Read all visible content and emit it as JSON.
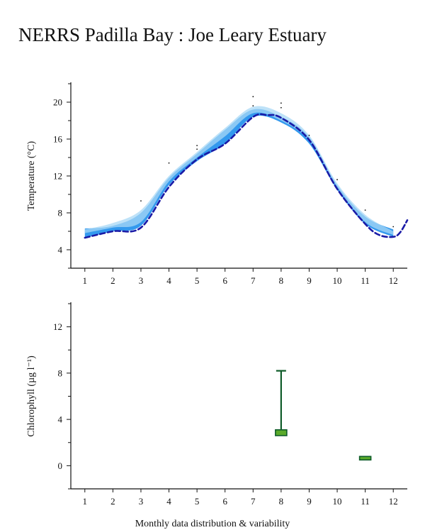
{
  "page": {
    "title": "NERRS Padilla Bay : Joe Leary Estuary",
    "footer": "Monthly data distribution & variability"
  },
  "chart_data": [
    {
      "type": "area",
      "ylabel": "Temperature (°C)",
      "xlim": [
        0.5,
        12.5
      ],
      "ylim": [
        2,
        22
      ],
      "x_ticks": [
        1,
        2,
        3,
        4,
        5,
        6,
        7,
        8,
        9,
        10,
        11,
        12
      ],
      "y_ticks": [
        4,
        8,
        12,
        16,
        20
      ],
      "colors": {
        "band": "#3399ee",
        "band_light": "#a8d8f6",
        "line": "#1a1aa6"
      },
      "band": {
        "x": [
          1,
          2,
          3,
          4,
          5,
          6,
          7,
          8,
          9,
          10,
          11,
          12
        ],
        "lower": [
          5.3,
          6.0,
          6.6,
          11.0,
          13.6,
          15.5,
          18.4,
          17.8,
          15.5,
          10.5,
          6.8,
          5.4
        ],
        "upper": [
          6.3,
          6.6,
          8.0,
          11.8,
          14.4,
          17.0,
          19.2,
          18.4,
          16.2,
          11.0,
          7.6,
          6.2
        ]
      },
      "light_band": {
        "x": [
          1,
          2,
          3,
          4,
          5,
          6,
          7,
          8,
          9,
          10,
          11,
          12
        ],
        "lower": [
          5.8,
          6.4,
          7.0,
          11.4,
          14.0,
          16.3,
          18.8,
          18.0,
          15.8,
          10.8,
          7.0,
          5.6
        ],
        "upper": [
          6.2,
          6.9,
          8.3,
          12.0,
          14.6,
          17.2,
          19.5,
          18.8,
          16.4,
          11.2,
          7.8,
          6.0
        ]
      },
      "median_line": {
        "x": [
          1,
          2,
          3,
          4,
          5,
          6,
          7,
          7.5,
          8,
          9,
          10,
          11,
          11.5,
          12,
          12.25,
          12.5
        ],
        "y": [
          5.3,
          6.0,
          6.4,
          10.8,
          13.8,
          15.5,
          18.4,
          18.6,
          18.3,
          15.9,
          10.6,
          6.8,
          5.6,
          5.4,
          5.9,
          7.2
        ]
      },
      "outliers": {
        "x": [
          3,
          4,
          5,
          5,
          7,
          7,
          8,
          8,
          9,
          10,
          11,
          12
        ],
        "y": [
          9.3,
          13.4,
          15.3,
          14.9,
          20.6,
          19.6,
          19.9,
          19.4,
          16.4,
          11.6,
          8.3,
          6.5
        ]
      }
    },
    {
      "type": "box",
      "ylabel": "Chlorophyll (µg l⁻¹)",
      "xlim": [
        0.5,
        12.5
      ],
      "ylim": [
        -2,
        14
      ],
      "x_ticks": [
        1,
        2,
        3,
        4,
        5,
        6,
        7,
        8,
        9,
        10,
        11,
        12
      ],
      "y_ticks": [
        0,
        4,
        8,
        12
      ],
      "colors": {
        "fill": "#5aaa2a",
        "stroke": "#0f5c2a"
      },
      "boxes": [
        {
          "x": 8,
          "q1": 2.6,
          "q3": 3.1,
          "whisker_high": 8.2
        },
        {
          "x": 11,
          "q1": 0.5,
          "q3": 0.8
        }
      ]
    }
  ]
}
